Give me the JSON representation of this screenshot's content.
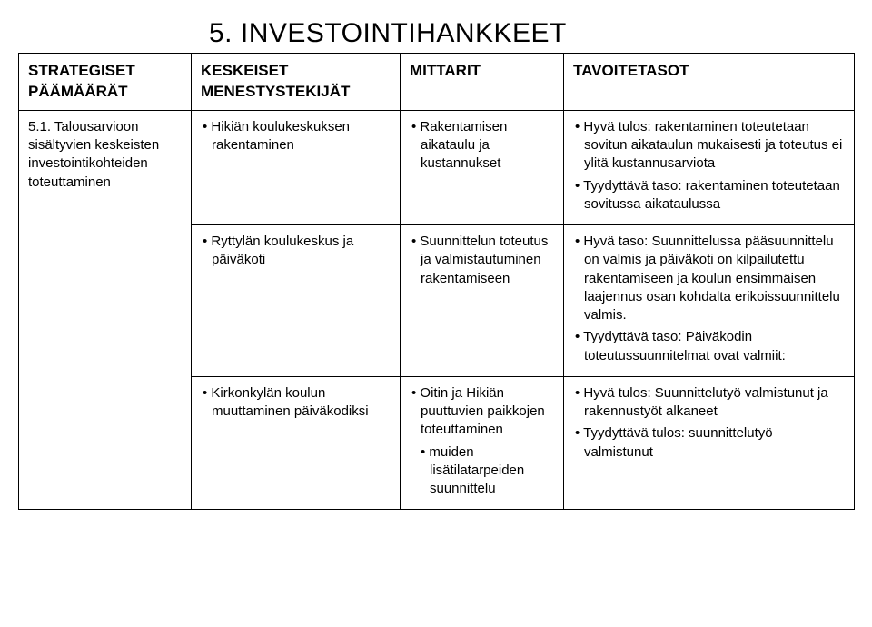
{
  "title": "5. INVESTOINTIHANKKEET",
  "headers": {
    "c1": "STRATEGISET PÄÄMÄÄRÄT",
    "c2": "KESKEISET MENESTYSTEKIJÄT",
    "c3": "MITTARIT",
    "c4": "TAVOITETASOT"
  },
  "row1": {
    "c1": "5.1. Talousarvioon sisältyvien keskeisten investointikohteiden toteuttaminen",
    "c2": "Hikiän koulukeskuksen rakentaminen",
    "c3": "Rakentamisen aikataulu ja kustannukset",
    "c4a": "Hyvä tulos: rakentaminen toteutetaan sovitun aikataulun mukaisesti ja toteutus ei ylitä kustannusarviota",
    "c4b": "Tyydyttävä taso: rakentaminen toteutetaan sovitussa aikataulussa"
  },
  "row2": {
    "c2": "Ryttylän koulukeskus ja päiväkoti",
    "c3": "Suunnittelun toteutus ja valmistautuminen rakentamiseen",
    "c4a": "Hyvä taso: Suunnittelussa pääsuunnittelu on valmis ja päiväkoti on kilpailutettu rakentamiseen ja koulun ensimmäisen laajennus osan kohdalta erikoissuunnittelu valmis.",
    "c4b": "Tyydyttävä taso: Päiväkodin toteutussuunnitelmat ovat valmiit:"
  },
  "row3": {
    "c2": "Kirkonkylän koulun muuttaminen päiväkodiksi",
    "c3a": "Oitin ja Hikiän puuttuvien paikkojen toteuttaminen",
    "c3b": "muiden lisätilatarpeiden suunnittelu",
    "c4a": "Hyvä tulos: Suunnittelutyö valmistunut ja rakennustyöt alkaneet",
    "c4b": "Tyydyttävä tulos: suunnittelutyö valmistunut"
  }
}
